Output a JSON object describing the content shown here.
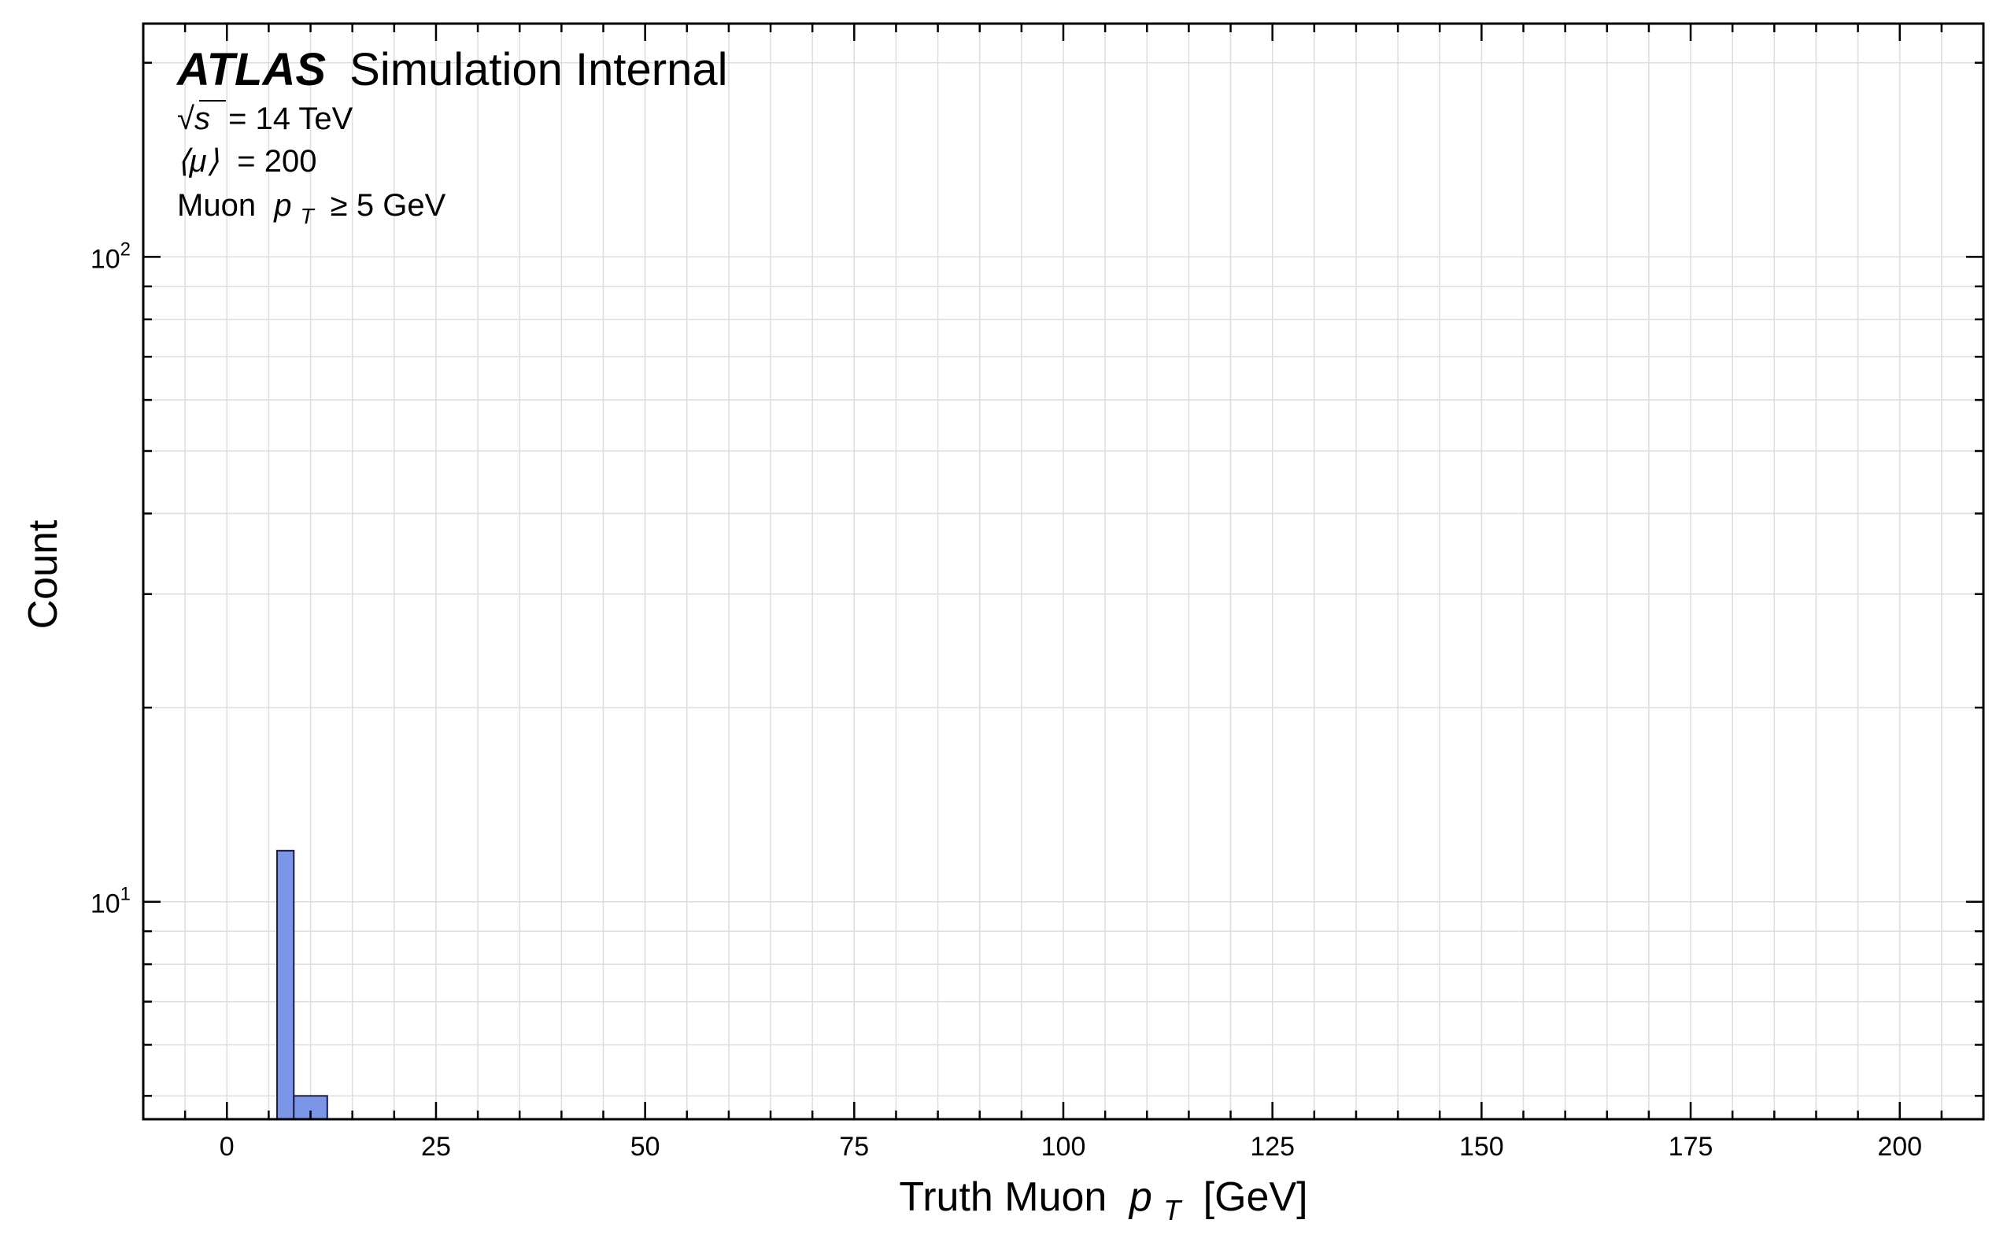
{
  "chart_data": {
    "type": "bar",
    "title": {
      "experiment": "ATLAS",
      "label": "Simulation Internal"
    },
    "annotations": {
      "sqrt_s_symbol": "√s",
      "energy": "= 14 TeV",
      "pileup_symbol": "⟨μ⟩",
      "pileup": "= 200",
      "cut_prefix": "Muon",
      "cut_var": "p",
      "cut_sub": "T",
      "cut_suffix": "≥ 5 GeV"
    },
    "xlabel": {
      "prefix": "Truth Muon",
      "var": "p",
      "sub": "T",
      "suffix": "[GeV]"
    },
    "ylabel": "Count",
    "xlim": [
      -10,
      210
    ],
    "ylim": [
      4.6,
      230
    ],
    "yscale": "log",
    "grid": true,
    "x_ticks": [
      0,
      25,
      50,
      75,
      100,
      125,
      150,
      175,
      200
    ],
    "y_ticks": [
      {
        "base": "10",
        "exp": "1",
        "value": 10
      },
      {
        "base": "10",
        "exp": "2",
        "value": 100
      }
    ],
    "bins": [
      {
        "x0": 6,
        "x1": 8,
        "count": 12
      },
      {
        "x0": 8,
        "x1": 12,
        "count": 5
      }
    ],
    "colors": {
      "bar_fill": "#7b96e6",
      "bar_edge": "#1a1a4a",
      "grid": "#dddddd",
      "axes": "#000000"
    }
  }
}
